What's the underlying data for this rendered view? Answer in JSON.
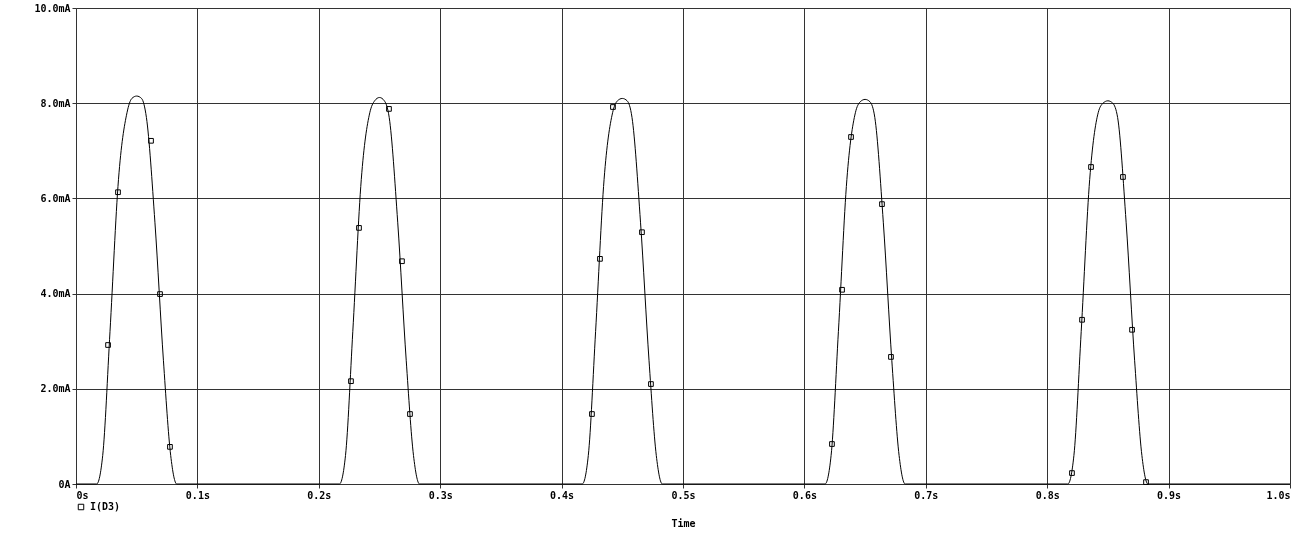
{
  "chart_data": {
    "type": "line",
    "xlabel": "Time",
    "xlim": [
      0,
      1.0
    ],
    "ylim": [
      0,
      10
    ],
    "xticks": [
      {
        "value": 0,
        "label": "0s"
      },
      {
        "value": 0.1,
        "label": "0.1s"
      },
      {
        "value": 0.2,
        "label": "0.2s"
      },
      {
        "value": 0.3,
        "label": "0.3s"
      },
      {
        "value": 0.4,
        "label": "0.4s"
      },
      {
        "value": 0.5,
        "label": "0.5s"
      },
      {
        "value": 0.6,
        "label": "0.6s"
      },
      {
        "value": 0.7,
        "label": "0.7s"
      },
      {
        "value": 0.8,
        "label": "0.8s"
      },
      {
        "value": 0.9,
        "label": "0.9s"
      },
      {
        "value": 1.0,
        "label": "1.0s"
      }
    ],
    "yticks": [
      {
        "value": 0,
        "label": "0A"
      },
      {
        "value": 2,
        "label": "2.0mA"
      },
      {
        "value": 4,
        "label": "4.0mA"
      },
      {
        "value": 6,
        "label": "6.0mA"
      },
      {
        "value": 8,
        "label": "8.0mA"
      },
      {
        "value": 10,
        "label": "10.0mA"
      }
    ],
    "grid": true,
    "legend": "bottom left",
    "series": [
      {
        "name": "I(D3)",
        "type": "line",
        "color": "#000000",
        "x": [
          0,
          0.017,
          0.022,
          0.028,
          0.035,
          0.042,
          0.046,
          0.05,
          0.054,
          0.058,
          0.065,
          0.072,
          0.078,
          0.083,
          0.217,
          0.222,
          0.228,
          0.235,
          0.242,
          0.246,
          0.25,
          0.254,
          0.258,
          0.265,
          0.272,
          0.278,
          0.283,
          0.417,
          0.422,
          0.428,
          0.435,
          0.442,
          0.446,
          0.45,
          0.454,
          0.458,
          0.465,
          0.472,
          0.478,
          0.483,
          0.617,
          0.622,
          0.628,
          0.635,
          0.642,
          0.646,
          0.65,
          0.654,
          0.658,
          0.665,
          0.672,
          0.678,
          0.683,
          0.817,
          0.822,
          0.828,
          0.835,
          0.842,
          0.846,
          0.85,
          0.854,
          0.858,
          0.865,
          0.872,
          0.878,
          0.883,
          1.0
        ],
        "values": [
          0,
          0,
          0.6,
          3.2,
          6.4,
          7.8,
          8.1,
          8.15,
          8.1,
          7.7,
          5.5,
          2.6,
          0.6,
          0,
          0,
          0.6,
          3.2,
          6.4,
          7.8,
          8.05,
          8.12,
          8.05,
          7.7,
          5.5,
          2.6,
          0.6,
          0,
          0,
          0.6,
          3.2,
          6.4,
          7.8,
          8.05,
          8.1,
          8.05,
          7.7,
          5.5,
          2.6,
          0.6,
          0,
          0,
          0.6,
          3.2,
          6.4,
          7.8,
          8.03,
          8.08,
          8.03,
          7.7,
          5.5,
          2.6,
          0.6,
          0,
          0,
          0.6,
          3.2,
          6.4,
          7.8,
          8.0,
          8.05,
          8.0,
          7.7,
          5.5,
          2.6,
          0.6,
          0,
          0
        ]
      },
      {
        "type": "scatter",
        "marker": "square",
        "color": "#000000",
        "x": [
          0.0264,
          0.0346,
          0.0618,
          0.0692,
          0.0774,
          0.2265,
          0.2331,
          0.2578,
          0.2685,
          0.2751,
          0.425,
          0.4316,
          0.4423,
          0.4662,
          0.4736,
          0.6227,
          0.631,
          0.6384,
          0.6639,
          0.6713,
          0.8204,
          0.8287,
          0.8361,
          0.8624,
          0.8699,
          0.8814
        ],
        "values": [
          2.92,
          6.13,
          7.21,
          3.99,
          0.78,
          2.16,
          5.38,
          7.88,
          4.68,
          1.47,
          1.47,
          4.73,
          7.92,
          5.29,
          2.1,
          0.84,
          4.08,
          7.29,
          5.88,
          2.67,
          0.23,
          3.45,
          6.66,
          6.45,
          3.24,
          0.04
        ]
      }
    ]
  }
}
